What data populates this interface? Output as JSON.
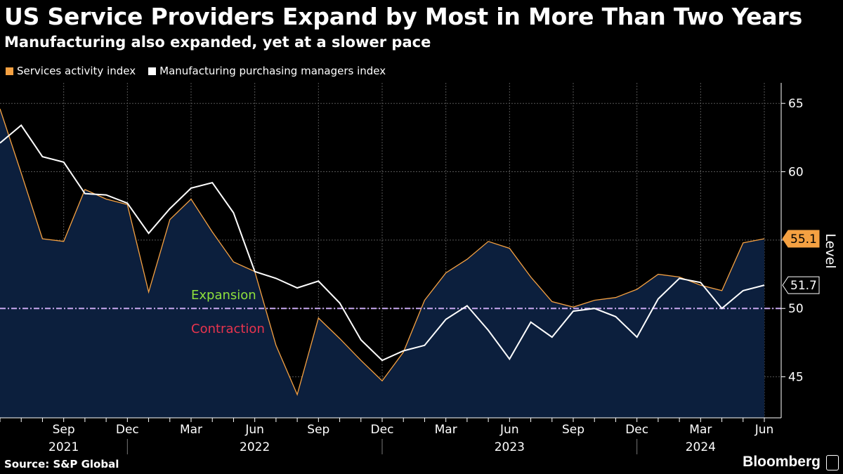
{
  "header": {
    "title": "US Service Providers Expand by Most in More Than Two Years",
    "subtitle": "Manufacturing also expanded, yet at a slower pace"
  },
  "footer": {
    "source": "Source: S&P Global",
    "brand": "Bloomberg",
    "brand_icon": "bloomberg-terminal-icon"
  },
  "colors": {
    "services": "#f5a142",
    "manufacturing": "#ffffff",
    "area_fill": "#0c1f3d",
    "threshold": "#c8a8f0",
    "expansion": "#8ee03c",
    "contraction": "#e8344e",
    "grid": "#555555"
  },
  "chart_data": {
    "type": "line",
    "ylabel": "Level",
    "ylim": [
      42,
      66.5
    ],
    "y_ticks": [
      45,
      50,
      55,
      60,
      65
    ],
    "grid": true,
    "legend_position": "top-left",
    "x": [
      "2021-06",
      "2021-07",
      "2021-08",
      "2021-09",
      "2021-10",
      "2021-11",
      "2021-12",
      "2022-01",
      "2022-02",
      "2022-03",
      "2022-04",
      "2022-05",
      "2022-06",
      "2022-07",
      "2022-08",
      "2022-09",
      "2022-10",
      "2022-11",
      "2022-12",
      "2023-01",
      "2023-02",
      "2023-03",
      "2023-04",
      "2023-05",
      "2023-06",
      "2023-07",
      "2023-08",
      "2023-09",
      "2023-10",
      "2023-11",
      "2023-12",
      "2024-01",
      "2024-02",
      "2024-03",
      "2024-04",
      "2024-05",
      "2024-06"
    ],
    "x_tick_labels": [
      {
        "x": "2021-09",
        "month": "Sep",
        "year": "2021"
      },
      {
        "x": "2021-12",
        "month": "Dec",
        "year": ""
      },
      {
        "x": "2022-03",
        "month": "Mar",
        "year": ""
      },
      {
        "x": "2022-06",
        "month": "Jun",
        "year": "2022"
      },
      {
        "x": "2022-09",
        "month": "Sep",
        "year": ""
      },
      {
        "x": "2022-12",
        "month": "Dec",
        "year": ""
      },
      {
        "x": "2023-03",
        "month": "Mar",
        "year": ""
      },
      {
        "x": "2023-06",
        "month": "Jun",
        "year": "2023"
      },
      {
        "x": "2023-09",
        "month": "Sep",
        "year": ""
      },
      {
        "x": "2023-12",
        "month": "Dec",
        "year": ""
      },
      {
        "x": "2024-03",
        "month": "Mar",
        "year": "2024"
      },
      {
        "x": "2024-06",
        "month": "Jun",
        "year": ""
      }
    ],
    "series": [
      {
        "name": "Services activity index",
        "values": [
          64.6,
          59.9,
          55.1,
          54.9,
          58.7,
          58.0,
          57.6,
          51.2,
          56.5,
          58.0,
          55.6,
          53.4,
          52.7,
          47.3,
          43.7,
          49.3,
          47.8,
          46.2,
          44.7,
          46.8,
          50.6,
          52.6,
          53.6,
          54.9,
          54.4,
          52.3,
          50.5,
          50.1,
          50.6,
          50.8,
          51.4,
          52.5,
          52.3,
          51.7,
          51.3,
          54.8,
          55.1
        ],
        "end_label": "55.1"
      },
      {
        "name": "Manufacturing purchasing managers index",
        "values": [
          62.1,
          63.4,
          61.1,
          60.7,
          58.4,
          58.3,
          57.7,
          55.5,
          57.3,
          58.8,
          59.2,
          57.0,
          52.7,
          52.2,
          51.5,
          52.0,
          50.4,
          47.7,
          46.2,
          46.9,
          47.3,
          49.2,
          50.2,
          48.4,
          46.3,
          49.0,
          47.9,
          49.8,
          50.0,
          49.4,
          47.9,
          50.7,
          52.2,
          51.9,
          50.0,
          51.3,
          51.7
        ],
        "end_label": "51.7"
      }
    ],
    "threshold": {
      "value": 50,
      "above_label": "Expansion",
      "below_label": "Contraction"
    }
  }
}
